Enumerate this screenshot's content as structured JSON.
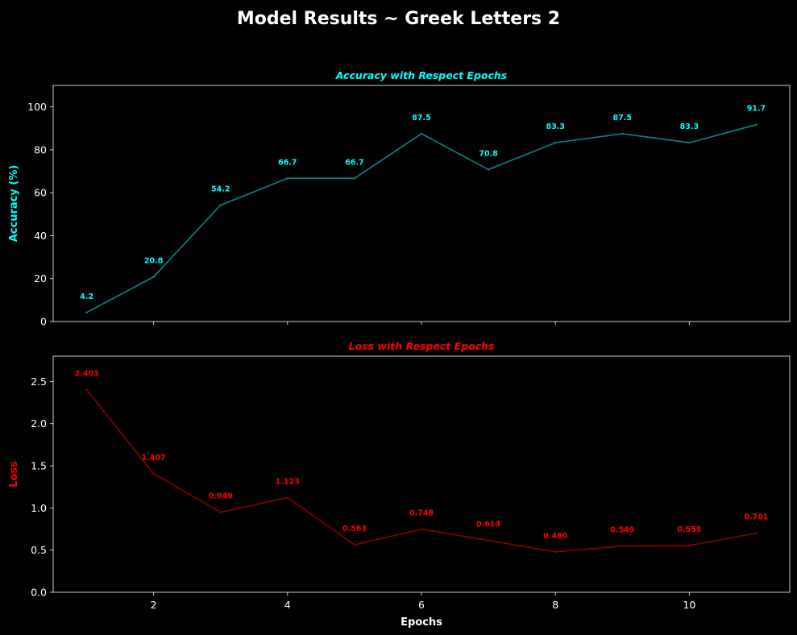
{
  "figure": {
    "suptitle": "Model Results ~ Greek Letters 2"
  },
  "chart_data": [
    {
      "type": "line",
      "title": "Accuracy with Respect Epochs",
      "xlabel": "",
      "ylabel": "Accuracy (%)",
      "x": [
        1,
        2,
        3,
        4,
        5,
        6,
        7,
        8,
        9,
        10,
        11
      ],
      "values": [
        4.2,
        20.8,
        54.2,
        66.7,
        66.7,
        87.5,
        70.8,
        83.3,
        87.5,
        83.3,
        91.7
      ],
      "data_labels": [
        "4.2",
        "20.8",
        "54.2",
        "66.7",
        "66.7",
        "87.5",
        "70.8",
        "83.3",
        "87.5",
        "83.3",
        "91.7"
      ],
      "xlim": [
        0.5,
        11.5
      ],
      "ylim": [
        0,
        110
      ],
      "xticks": [
        2,
        4,
        6,
        8,
        10
      ],
      "xtick_labels_visible": false,
      "yticks": [
        0,
        20,
        40,
        60,
        80,
        100
      ],
      "ytick_labels": [
        "0",
        "20",
        "40",
        "60",
        "80",
        "100"
      ],
      "grid": false,
      "colors": {
        "line": "#008b8b",
        "text": "#00ffff"
      }
    },
    {
      "type": "line",
      "title": "Loss with Respect Epochs",
      "xlabel": "Epochs",
      "ylabel": "Loss",
      "x": [
        1,
        2,
        3,
        4,
        5,
        6,
        7,
        8,
        9,
        10,
        11
      ],
      "values": [
        2.403,
        1.407,
        0.949,
        1.123,
        0.563,
        0.748,
        0.614,
        0.48,
        0.549,
        0.555,
        0.701
      ],
      "data_labels": [
        "2.403",
        "1.407",
        "0.949",
        "1.123",
        "0.563",
        "0.748",
        "0.614",
        "0.480",
        "0.549",
        "0.555",
        "0.701"
      ],
      "xlim": [
        0.5,
        11.5
      ],
      "ylim": [
        0,
        2.8
      ],
      "xticks": [
        2,
        4,
        6,
        8,
        10
      ],
      "xtick_labels": [
        "2",
        "4",
        "6",
        "8",
        "10"
      ],
      "xtick_labels_visible": true,
      "yticks": [
        0,
        0.5,
        1.0,
        1.5,
        2.0,
        2.5
      ],
      "ytick_labels": [
        "0.0",
        "0.5",
        "1.0",
        "1.5",
        "2.0",
        "2.5"
      ],
      "grid": false,
      "colors": {
        "line": "#8b0000",
        "text": "#ff0000"
      }
    }
  ],
  "colors": {
    "background": "#000000",
    "foreground": "#ffffff"
  }
}
